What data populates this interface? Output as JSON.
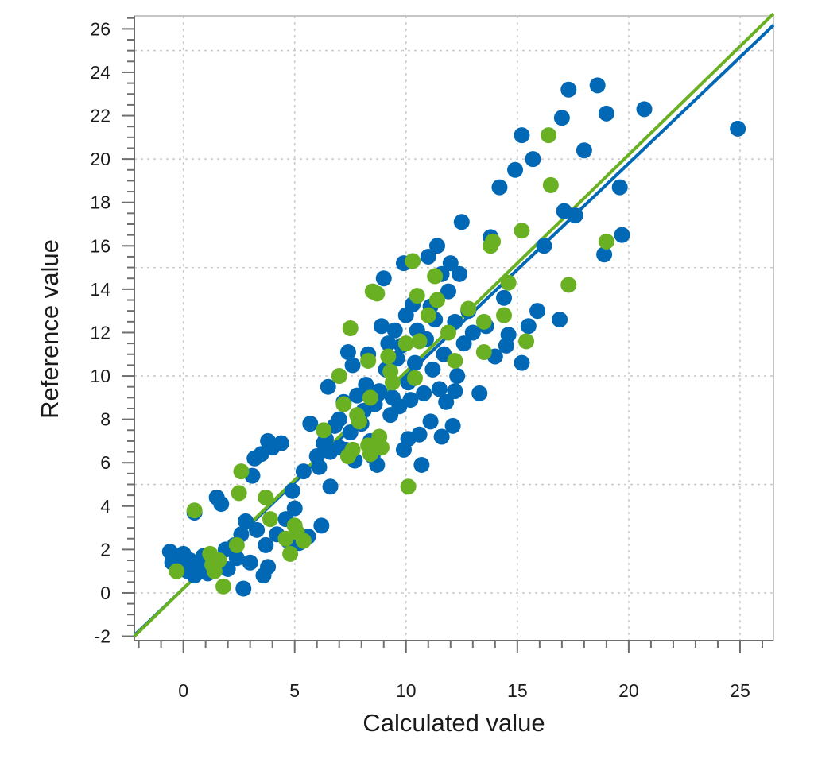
{
  "chart_data": {
    "type": "scatter",
    "title": "",
    "xlabel": "Calculated value",
    "ylabel": "Reference value",
    "xlim": [
      -2.2,
      26.5
    ],
    "ylim": [
      -2.2,
      26.6
    ],
    "xticks": [
      0,
      5,
      10,
      15,
      20,
      25
    ],
    "yticks": [
      -2,
      0,
      2,
      4,
      6,
      8,
      10,
      12,
      14,
      16,
      18,
      20,
      22,
      24,
      26
    ],
    "grid": true,
    "legend": "none",
    "series": [
      {
        "color": "#0068b5",
        "points": [
          [
            -0.6,
            1.9
          ],
          [
            -0.5,
            1.4
          ],
          [
            -0.3,
            1.2
          ],
          [
            0.0,
            1.8
          ],
          [
            0.2,
            1.0
          ],
          [
            0.3,
            1.5
          ],
          [
            0.5,
            3.7
          ],
          [
            0.5,
            0.8
          ],
          [
            0.7,
            1.3
          ],
          [
            0.9,
            1.7
          ],
          [
            1.1,
            0.9
          ],
          [
            1.5,
            4.4
          ],
          [
            1.7,
            4.1
          ],
          [
            1.9,
            2.0
          ],
          [
            2.0,
            1.1
          ],
          [
            2.3,
            2.2
          ],
          [
            2.4,
            1.6
          ],
          [
            2.6,
            2.7
          ],
          [
            2.7,
            0.2
          ],
          [
            2.8,
            3.3
          ],
          [
            3.0,
            1.4
          ],
          [
            3.1,
            5.4
          ],
          [
            3.2,
            6.2
          ],
          [
            3.3,
            2.9
          ],
          [
            3.5,
            6.4
          ],
          [
            3.6,
            0.8
          ],
          [
            3.7,
            2.2
          ],
          [
            3.8,
            7.0
          ],
          [
            3.8,
            1.2
          ],
          [
            4.0,
            6.7
          ],
          [
            4.2,
            2.7
          ],
          [
            4.4,
            6.9
          ],
          [
            4.6,
            3.4
          ],
          [
            4.7,
            2.4
          ],
          [
            4.9,
            4.7
          ],
          [
            5.0,
            3.9
          ],
          [
            5.2,
            2.3
          ],
          [
            5.4,
            5.6
          ],
          [
            5.6,
            2.6
          ],
          [
            5.7,
            7.8
          ],
          [
            6.0,
            6.3
          ],
          [
            6.1,
            5.8
          ],
          [
            6.2,
            3.1
          ],
          [
            6.3,
            6.9
          ],
          [
            6.4,
            7.1
          ],
          [
            6.6,
            6.5
          ],
          [
            6.5,
            9.5
          ],
          [
            6.6,
            4.9
          ],
          [
            6.8,
            7.7
          ],
          [
            7.0,
            8.0
          ],
          [
            7.0,
            6.7
          ],
          [
            7.2,
            8.8
          ],
          [
            7.3,
            6.6
          ],
          [
            7.4,
            11.1
          ],
          [
            7.5,
            7.4
          ],
          [
            7.6,
            10.5
          ],
          [
            7.7,
            6.1
          ],
          [
            7.8,
            9.1
          ],
          [
            8.0,
            7.8
          ],
          [
            8.1,
            8.4
          ],
          [
            8.2,
            9.6
          ],
          [
            8.3,
            11.0
          ],
          [
            8.4,
            7.0
          ],
          [
            8.5,
            6.3
          ],
          [
            8.6,
            8.7
          ],
          [
            8.7,
            5.9
          ],
          [
            8.8,
            9.3
          ],
          [
            8.9,
            12.3
          ],
          [
            9.0,
            14.5
          ],
          [
            9.1,
            10.3
          ],
          [
            9.2,
            11.5
          ],
          [
            9.3,
            8.2
          ],
          [
            9.4,
            9.0
          ],
          [
            9.5,
            12.1
          ],
          [
            9.6,
            10.8
          ],
          [
            9.7,
            8.6
          ],
          [
            9.8,
            11.4
          ],
          [
            9.9,
            15.2
          ],
          [
            9.9,
            6.6
          ],
          [
            10.0,
            12.8
          ],
          [
            10.1,
            9.7
          ],
          [
            10.1,
            7.1
          ],
          [
            10.2,
            8.9
          ],
          [
            10.3,
            13.3
          ],
          [
            10.4,
            10.6
          ],
          [
            10.5,
            12.1
          ],
          [
            10.6,
            7.3
          ],
          [
            10.7,
            5.9
          ],
          [
            10.8,
            9.2
          ],
          [
            10.9,
            11.7
          ],
          [
            11.0,
            15.5
          ],
          [
            11.1,
            13.2
          ],
          [
            11.1,
            7.9
          ],
          [
            11.2,
            10.3
          ],
          [
            11.3,
            12.6
          ],
          [
            11.4,
            16.0
          ],
          [
            11.5,
            9.4
          ],
          [
            11.6,
            14.7
          ],
          [
            11.7,
            11.0
          ],
          [
            11.8,
            8.8
          ],
          [
            11.9,
            13.9
          ],
          [
            12.0,
            15.2
          ],
          [
            12.1,
            7.7
          ],
          [
            12.2,
            12.5
          ],
          [
            12.3,
            10.0
          ],
          [
            12.4,
            14.7
          ],
          [
            12.5,
            17.1
          ],
          [
            12.6,
            11.5
          ],
          [
            12.8,
            13.0
          ],
          [
            13.0,
            12.0
          ],
          [
            13.3,
            9.2
          ],
          [
            13.6,
            12.3
          ],
          [
            13.8,
            16.4
          ],
          [
            14.0,
            10.9
          ],
          [
            14.2,
            18.7
          ],
          [
            14.4,
            13.6
          ],
          [
            14.6,
            11.9
          ],
          [
            14.9,
            19.5
          ],
          [
            15.2,
            21.1
          ],
          [
            15.5,
            12.3
          ],
          [
            15.7,
            20.0
          ],
          [
            15.9,
            13.0
          ],
          [
            16.2,
            16.0
          ],
          [
            17.0,
            21.9
          ],
          [
            17.3,
            23.2
          ],
          [
            17.1,
            17.6
          ],
          [
            17.6,
            17.4
          ],
          [
            18.0,
            20.4
          ],
          [
            18.6,
            23.4
          ],
          [
            19.0,
            22.1
          ],
          [
            18.9,
            15.6
          ],
          [
            19.6,
            18.7
          ],
          [
            19.7,
            16.5
          ],
          [
            20.7,
            22.3
          ],
          [
            24.9,
            21.4
          ],
          [
            16.9,
            12.6
          ],
          [
            15.2,
            10.6
          ],
          [
            14.5,
            11.4
          ],
          [
            12.2,
            9.3
          ],
          [
            11.6,
            7.2
          ]
        ]
      },
      {
        "color": "#6ab023",
        "points": [
          [
            -0.3,
            1.0
          ],
          [
            0.5,
            3.8
          ],
          [
            1.2,
            1.8
          ],
          [
            1.3,
            1.3
          ],
          [
            1.4,
            1.0
          ],
          [
            1.6,
            1.5
          ],
          [
            1.8,
            0.3
          ],
          [
            2.4,
            2.2
          ],
          [
            2.5,
            4.6
          ],
          [
            2.6,
            5.6
          ],
          [
            3.7,
            4.4
          ],
          [
            3.9,
            3.4
          ],
          [
            4.6,
            2.5
          ],
          [
            4.8,
            1.8
          ],
          [
            5.0,
            3.1
          ],
          [
            5.1,
            2.8
          ],
          [
            5.4,
            2.4
          ],
          [
            6.3,
            7.5
          ],
          [
            7.0,
            10.0
          ],
          [
            7.2,
            8.7
          ],
          [
            7.4,
            6.3
          ],
          [
            7.5,
            12.2
          ],
          [
            7.6,
            6.6
          ],
          [
            7.8,
            8.2
          ],
          [
            7.9,
            7.9
          ],
          [
            8.3,
            10.7
          ],
          [
            8.3,
            6.8
          ],
          [
            8.4,
            6.4
          ],
          [
            8.4,
            9.0
          ],
          [
            8.5,
            13.9
          ],
          [
            8.7,
            13.8
          ],
          [
            8.8,
            7.2
          ],
          [
            8.9,
            6.7
          ],
          [
            9.2,
            10.9
          ],
          [
            9.3,
            10.2
          ],
          [
            9.4,
            9.7
          ],
          [
            10.0,
            11.5
          ],
          [
            10.1,
            4.9
          ],
          [
            10.3,
            15.3
          ],
          [
            10.4,
            9.9
          ],
          [
            10.5,
            13.7
          ],
          [
            10.6,
            11.6
          ],
          [
            11.0,
            12.8
          ],
          [
            11.3,
            14.6
          ],
          [
            11.4,
            13.5
          ],
          [
            11.9,
            12.0
          ],
          [
            12.2,
            10.7
          ],
          [
            12.8,
            13.1
          ],
          [
            13.5,
            11.1
          ],
          [
            13.5,
            12.5
          ],
          [
            13.8,
            16.0
          ],
          [
            13.9,
            16.2
          ],
          [
            14.4,
            12.8
          ],
          [
            14.6,
            14.3
          ],
          [
            15.2,
            16.7
          ],
          [
            15.4,
            11.6
          ],
          [
            16.4,
            21.1
          ],
          [
            16.5,
            18.8
          ],
          [
            17.3,
            14.2
          ],
          [
            19.0,
            16.2
          ]
        ]
      }
    ],
    "fit_lines": [
      {
        "color": "#0068b5",
        "slope": 0.98,
        "intercept": 0.2
      },
      {
        "color": "#6ab023",
        "slope": 1.0,
        "intercept": 0.2
      }
    ]
  }
}
